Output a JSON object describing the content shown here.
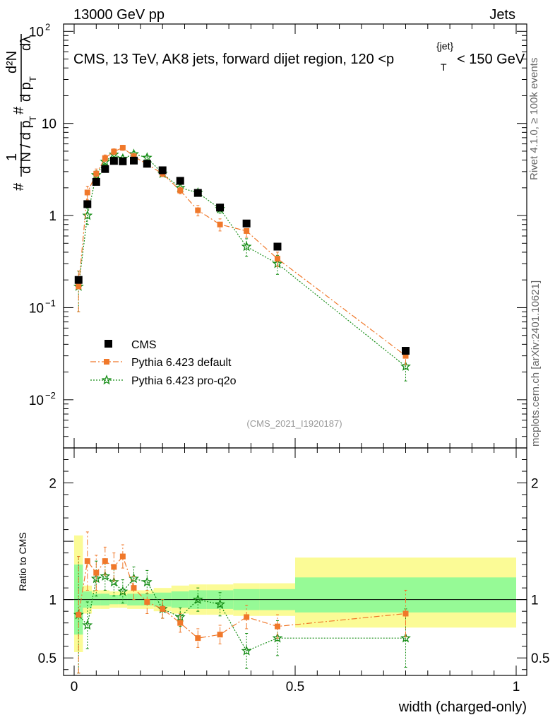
{
  "header": {
    "left": "13000 GeV pp",
    "right": "Jets"
  },
  "side": {
    "rivet": "Rivet 4.1.0, ≥ 100k events",
    "mcplots": "mcplots.cern.ch [arXiv:2401.10621]"
  },
  "watermark": "(CMS_2021_I1920187)",
  "ylabel": {
    "prefix": "#",
    "one": "1",
    "dN": "d N / d p",
    "dN_sub": "T",
    "hash2": "#",
    "dp": "d p",
    "dp_sub": "T",
    "d2N": "d²N",
    "dlam": "dλ"
  },
  "title": {
    "main": "CMS, 13 TeV, AK8 jets, forward dijet region, 120 <p",
    "sub": "T",
    "sup": "{jet}",
    "end": "< 150 GeV"
  },
  "xlabel": "width (charged-only)",
  "ratio_ylabel": "Ratio to CMS",
  "colors": {
    "cms": "#000000",
    "default": "#f0782a",
    "proq2o": "#148c14",
    "band_outer": "#fbfb96",
    "band_inner": "#96fa96"
  },
  "legend": [
    "CMS",
    "Pythia 6.423 default",
    "Pythia 6.423 pro-q2o"
  ],
  "chart_data": [
    {
      "type": "scatter",
      "panel": "main",
      "xlim": [
        0,
        1
      ],
      "ylim": [
        0.003,
        120
      ],
      "yscale": "log",
      "yticks": [
        {
          "v": 0.01,
          "base": "10",
          "exp": "−2"
        },
        {
          "v": 0.1,
          "base": "10",
          "exp": "−1"
        },
        {
          "v": 1,
          "base": "1",
          "exp": ""
        },
        {
          "v": 10,
          "base": "10",
          "exp": ""
        },
        {
          "v": 100,
          "base": "10",
          "exp": "2"
        }
      ],
      "series": [
        {
          "name": "CMS",
          "marker": "square",
          "x": [
            0.01,
            0.03,
            0.05,
            0.07,
            0.09,
            0.11,
            0.135,
            0.165,
            0.2,
            0.24,
            0.28,
            0.33,
            0.39,
            0.46,
            0.75
          ],
          "y": [
            0.2,
            1.33,
            2.32,
            3.2,
            3.92,
            3.88,
            3.95,
            3.65,
            3.1,
            2.38,
            1.76,
            1.22,
            0.82,
            0.46,
            0.034
          ]
        },
        {
          "name": "Pythia 6.423 default",
          "marker": "filled-square-small",
          "line": "dashdot",
          "x": [
            0.01,
            0.03,
            0.05,
            0.07,
            0.09,
            0.11,
            0.135,
            0.165,
            0.2,
            0.24,
            0.28,
            0.33,
            0.39,
            0.46,
            0.75
          ],
          "y": [
            0.17,
            1.78,
            2.85,
            4.2,
            4.95,
            5.45,
            4.4,
            3.6,
            2.85,
            1.87,
            1.14,
            0.8,
            0.68,
            0.34,
            0.03
          ],
          "err": [
            0.08,
            0.3,
            0.35,
            0.35,
            0.35,
            0.35,
            0.3,
            0.25,
            0.2,
            0.15,
            0.15,
            0.12,
            0.1,
            0.06,
            0.006
          ]
        },
        {
          "name": "Pythia 6.423 pro-q2o",
          "marker": "star",
          "line": "dotted",
          "x": [
            0.01,
            0.03,
            0.05,
            0.07,
            0.09,
            0.11,
            0.135,
            0.165,
            0.2,
            0.24,
            0.28,
            0.33,
            0.39,
            0.46,
            0.75
          ],
          "y": [
            0.17,
            1.0,
            2.75,
            3.85,
            4.6,
            4.15,
            4.65,
            4.25,
            2.85,
            2.0,
            1.77,
            1.18,
            0.46,
            0.3,
            0.023
          ],
          "err": [
            0.08,
            0.2,
            0.3,
            0.3,
            0.35,
            0.3,
            0.3,
            0.25,
            0.2,
            0.15,
            0.15,
            0.12,
            0.1,
            0.07,
            0.007
          ]
        }
      ]
    },
    {
      "type": "scatter",
      "panel": "ratio",
      "xlim": [
        0,
        1
      ],
      "ylim": [
        0.35,
        2.3
      ],
      "yticks": [
        {
          "v": 0.5,
          "label": "0.5"
        },
        {
          "v": 1,
          "label": "1"
        },
        {
          "v": 2,
          "label": "2"
        }
      ],
      "xticks": [
        {
          "v": 0,
          "label": "0"
        },
        {
          "v": 0.5,
          "label": "0.5"
        },
        {
          "v": 1,
          "label": "1"
        }
      ],
      "bands": {
        "edges": [
          0,
          0.02,
          0.04,
          0.06,
          0.08,
          0.1,
          0.12,
          0.15,
          0.18,
          0.22,
          0.26,
          0.3,
          0.36,
          0.42,
          0.5,
          1.0
        ],
        "outer": [
          [
            0.55,
            1.55
          ],
          [
            0.88,
            1.12
          ],
          [
            0.92,
            1.08
          ],
          [
            0.92,
            1.08
          ],
          [
            0.93,
            1.07
          ],
          [
            0.93,
            1.07
          ],
          [
            0.92,
            1.08
          ],
          [
            0.92,
            1.08
          ],
          [
            0.9,
            1.1
          ],
          [
            0.88,
            1.12
          ],
          [
            0.87,
            1.13
          ],
          [
            0.87,
            1.13
          ],
          [
            0.86,
            1.14
          ],
          [
            0.86,
            1.14
          ],
          [
            0.76,
            1.36
          ]
        ],
        "inner": [
          [
            0.7,
            1.3
          ],
          [
            0.93,
            1.07
          ],
          [
            0.95,
            1.05
          ],
          [
            0.95,
            1.05
          ],
          [
            0.96,
            1.04
          ],
          [
            0.96,
            1.04
          ],
          [
            0.95,
            1.05
          ],
          [
            0.95,
            1.05
          ],
          [
            0.94,
            1.06
          ],
          [
            0.93,
            1.07
          ],
          [
            0.92,
            1.08
          ],
          [
            0.92,
            1.08
          ],
          [
            0.91,
            1.09
          ],
          [
            0.91,
            1.09
          ],
          [
            0.89,
            1.19
          ]
        ]
      },
      "series": [
        {
          "name": "Pythia 6.423 default",
          "marker": "filled-square-small",
          "line": "dashdot",
          "x": [
            0.01,
            0.03,
            0.05,
            0.07,
            0.09,
            0.11,
            0.135,
            0.165,
            0.2,
            0.24,
            0.28,
            0.33,
            0.39,
            0.46,
            0.75
          ],
          "y": [
            0.87,
            1.33,
            1.23,
            1.33,
            1.28,
            1.37,
            1.1,
            0.98,
            0.92,
            0.8,
            0.67,
            0.7,
            0.85,
            0.77,
            0.88
          ],
          "err": [
            0.5,
            0.25,
            0.15,
            0.12,
            0.12,
            0.1,
            0.1,
            0.1,
            0.08,
            0.08,
            0.08,
            0.08,
            0.1,
            0.1,
            0.2
          ]
        },
        {
          "name": "Pythia 6.423 pro-q2o",
          "marker": "star",
          "line": "dotted",
          "x": [
            0.01,
            0.03,
            0.05,
            0.07,
            0.09,
            0.11,
            0.135,
            0.165,
            0.2,
            0.24,
            0.28,
            0.33,
            0.39,
            0.46,
            0.75
          ],
          "y": [
            0.87,
            0.78,
            1.18,
            1.2,
            1.15,
            1.07,
            1.18,
            1.15,
            0.92,
            0.85,
            1.0,
            0.96,
            0.56,
            0.67,
            0.67
          ],
          "err": [
            0.5,
            0.2,
            0.15,
            0.12,
            0.12,
            0.1,
            0.1,
            0.1,
            0.08,
            0.08,
            0.1,
            0.1,
            0.15,
            0.15,
            0.25
          ]
        }
      ]
    }
  ]
}
